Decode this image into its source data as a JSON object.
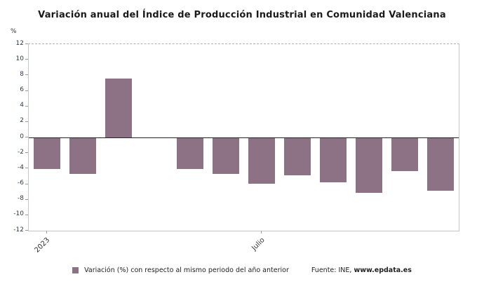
{
  "title": "Variación anual del Índice de Producción Industrial en Comunidad Valenciana",
  "y_axis_unit": "%",
  "legend": {
    "label": "Variación (%) con respecto al mismo periodo del año anterior",
    "source_prefix": "Fuente: INE, ",
    "source_site": "www.epdata.es"
  },
  "colors": {
    "bar": "#8c7284",
    "zero_line": "#222222",
    "plot_border": "#c6c6c6"
  },
  "chart_data": {
    "type": "bar",
    "categories": [
      "2023",
      "",
      "",
      "",
      "",
      "",
      "Julio",
      "",
      "",
      "",
      "",
      ""
    ],
    "values": [
      -4,
      -4.6,
      7.6,
      0,
      -4,
      -4.6,
      -5.9,
      -4.8,
      -5.7,
      -7,
      -4.2,
      -6.8
    ],
    "series": [
      {
        "name": "Variación (%) con respecto al mismo periodo del año anterior",
        "values": [
          -4,
          -4.6,
          7.6,
          0,
          -4,
          -4.6,
          -5.9,
          -4.8,
          -5.7,
          -7,
          -4.2,
          -6.8
        ]
      }
    ],
    "title": "Variación anual del Índice de Producción Industrial en Comunidad Valenciana",
    "xlabel": "",
    "ylabel": "%",
    "ylim": [
      -12,
      12
    ],
    "ytick_step": 2,
    "grid": false,
    "legend_position": "bottom"
  }
}
